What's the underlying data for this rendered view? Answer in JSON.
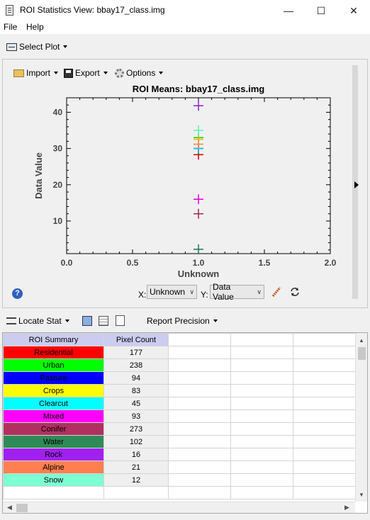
{
  "window": {
    "title": "ROI Statistics View: bbay17_class.img"
  },
  "menu": {
    "file": "File",
    "help": "Help"
  },
  "toolbar": {
    "select_plot": "Select Plot"
  },
  "plot_toolbar": {
    "import": "Import",
    "export": "Export",
    "options": "Options"
  },
  "chart_data": {
    "type": "scatter",
    "title": "ROI Means: bbay17_class.img",
    "xlabel": "Unknown",
    "ylabel": "Data Value",
    "xlim": [
      0.0,
      2.0
    ],
    "ylim": [
      1,
      44
    ],
    "x_ticks": [
      "0.0",
      "0.5",
      "1.0",
      "1.5",
      "2.0"
    ],
    "y_ticks": [
      "10",
      "20",
      "30",
      "40"
    ],
    "y_tick_values": [
      10,
      20,
      30,
      40
    ],
    "x_tick_values": [
      0.0,
      0.5,
      1.0,
      1.5,
      2.0
    ],
    "marker": "+",
    "series": [
      {
        "name": "Residential",
        "color": "#d40000",
        "x": 1.0,
        "y": 28.3
      },
      {
        "name": "Urban",
        "color": "#00cc00",
        "x": 1.0,
        "y": 33.0
      },
      {
        "name": "Pasture",
        "color": "#0000ff",
        "x": 1.0,
        "y": 30.0
      },
      {
        "name": "Crops",
        "color": "#e8c000",
        "x": 1.0,
        "y": 32.5
      },
      {
        "name": "Clearcut",
        "color": "#00d8d8",
        "x": 1.0,
        "y": 30.0
      },
      {
        "name": "Mixed",
        "color": "#e000e0",
        "x": 1.0,
        "y": 16.0
      },
      {
        "name": "Conifer",
        "color": "#a02850",
        "x": 1.0,
        "y": 12.0
      },
      {
        "name": "Water",
        "color": "#207850",
        "x": 1.0,
        "y": 2.2
      },
      {
        "name": "Rock",
        "color": "#9020e0",
        "x": 1.0,
        "y": 41.8
      },
      {
        "name": "Alpine",
        "color": "#ff8040",
        "x": 1.0,
        "y": 31.2
      },
      {
        "name": "Snow",
        "color": "#60f0c0",
        "x": 1.0,
        "y": 35.0
      }
    ]
  },
  "axis_selectors": {
    "x_label": "X:",
    "x_value": "Unknown",
    "y_label": "Y:",
    "y_value": "Data Value"
  },
  "stats_toolbar": {
    "locate_stat": "Locate Stat",
    "report_precision": "Report Precision"
  },
  "table": {
    "headers": [
      "ROI Summary",
      "Pixel Count"
    ],
    "rows": [
      {
        "name": "Residential",
        "count": "177",
        "color": "#ff0000"
      },
      {
        "name": "Urban",
        "count": "238",
        "color": "#00ff00"
      },
      {
        "name": "Pasture",
        "count": "94",
        "color": "#0000ff"
      },
      {
        "name": "Crops",
        "count": "83",
        "color": "#ffff00"
      },
      {
        "name": "Clearcut",
        "count": "45",
        "color": "#00ffff"
      },
      {
        "name": "Mixed",
        "count": "93",
        "color": "#ff00ff"
      },
      {
        "name": "Conifer",
        "count": "273",
        "color": "#b03060"
      },
      {
        "name": "Water",
        "count": "102",
        "color": "#2e8b57"
      },
      {
        "name": "Rock",
        "count": "16",
        "color": "#a020f0"
      },
      {
        "name": "Alpine",
        "count": "21",
        "color": "#ff7f50"
      },
      {
        "name": "Snow",
        "count": "12",
        "color": "#7fffd4"
      }
    ]
  }
}
